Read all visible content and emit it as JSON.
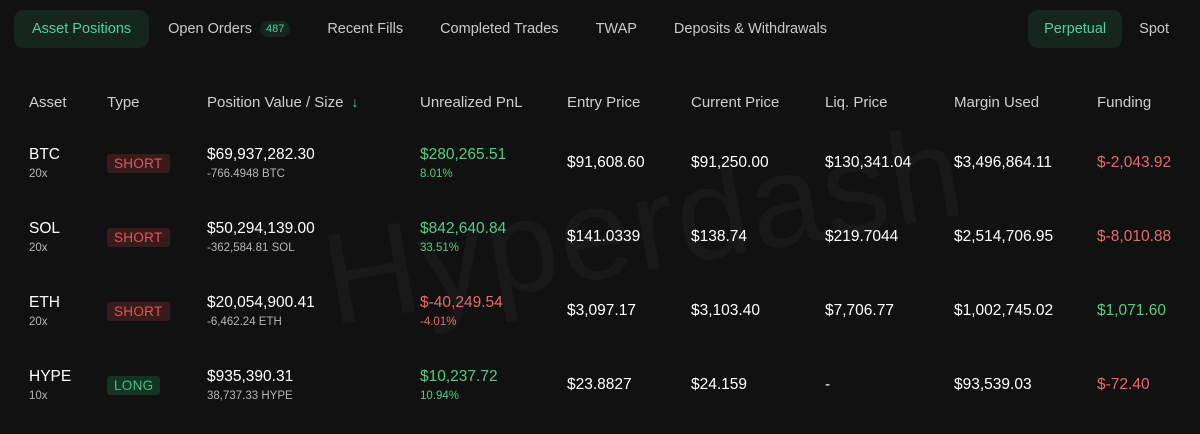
{
  "tabs": [
    {
      "label": "Asset Positions"
    },
    {
      "label": "Open Orders",
      "badge": "487"
    },
    {
      "label": "Recent Fills"
    },
    {
      "label": "Completed Trades"
    },
    {
      "label": "TWAP"
    },
    {
      "label": "Deposits & Withdrawals"
    }
  ],
  "market_tabs": [
    {
      "label": "Perpetual"
    },
    {
      "label": "Spot"
    }
  ],
  "columns": {
    "asset": "Asset",
    "type": "Type",
    "position": "Position Value / Size",
    "pnl": "Unrealized PnL",
    "entry": "Entry Price",
    "current": "Current Price",
    "liq": "Liq. Price",
    "margin": "Margin Used",
    "funding": "Funding"
  },
  "rows": [
    {
      "asset": "BTC",
      "leverage": "20x",
      "type": "SHORT",
      "value": "$69,937,282.30",
      "size": "-766.4948 BTC",
      "pnl": "$280,265.51",
      "pnl_pct": "8.01%",
      "entry": "$91,608.60",
      "current": "$91,250.00",
      "liq": "$130,341.04",
      "margin": "$3,496,864.11",
      "funding": "$-2,043.92"
    },
    {
      "asset": "SOL",
      "leverage": "20x",
      "type": "SHORT",
      "value": "$50,294,139.00",
      "size": "-362,584.81 SOL",
      "pnl": "$842,640.84",
      "pnl_pct": "33.51%",
      "entry": "$141.0339",
      "current": "$138.74",
      "liq": "$219.7044",
      "margin": "$2,514,706.95",
      "funding": "$-8,010.88"
    },
    {
      "asset": "ETH",
      "leverage": "20x",
      "type": "SHORT",
      "value": "$20,054,900.41",
      "size": "-6,462.24 ETH",
      "pnl": "$-40,249.54",
      "pnl_pct": "-4.01%",
      "entry": "$3,097.17",
      "current": "$3,103.40",
      "liq": "$7,706.77",
      "margin": "$1,002,745.02",
      "funding": "$1,071.60"
    },
    {
      "asset": "HYPE",
      "leverage": "10x",
      "type": "LONG",
      "value": "$935,390.31",
      "size": "38,737.33 HYPE",
      "pnl": "$10,237.72",
      "pnl_pct": "10.94%",
      "entry": "$23.8827",
      "current": "$24.159",
      "liq": "-",
      "margin": "$93,539.03",
      "funding": "$-72.40"
    }
  ],
  "watermark": "Hyperdash",
  "icons": {
    "sort": "arrow-down-icon"
  },
  "colors": {
    "accent": "#4fd1a0",
    "positive": "#4fd17f",
    "negative": "#e76a6a",
    "background": "#111111"
  }
}
